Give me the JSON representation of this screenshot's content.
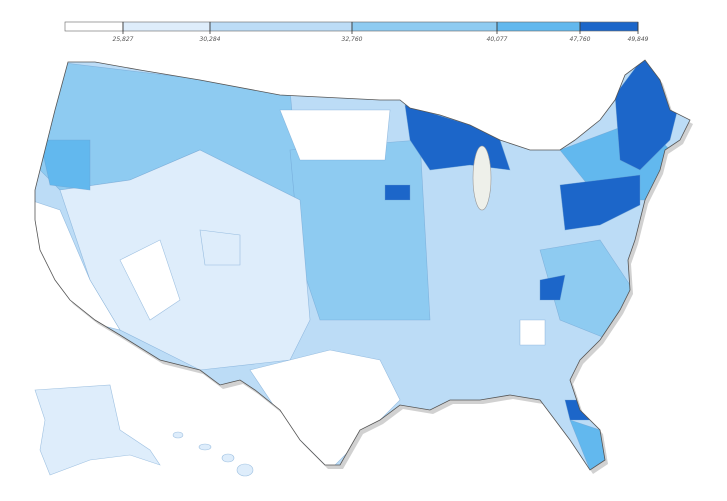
{
  "legend": {
    "ticks": [
      {
        "value": 25827,
        "label": "25,827"
      },
      {
        "value": 30284,
        "label": "30,284"
      },
      {
        "value": 32760,
        "label": "32,760"
      },
      {
        "value": 40077,
        "label": "40,077"
      },
      {
        "value": 47760,
        "label": "47,760"
      },
      {
        "value": 49849,
        "label": "49,849"
      }
    ],
    "colors": [
      "#ffffff",
      "#deedfb",
      "#bcdcf6",
      "#8ecbf1",
      "#62b8ee",
      "#1c66c9"
    ]
  }
}
